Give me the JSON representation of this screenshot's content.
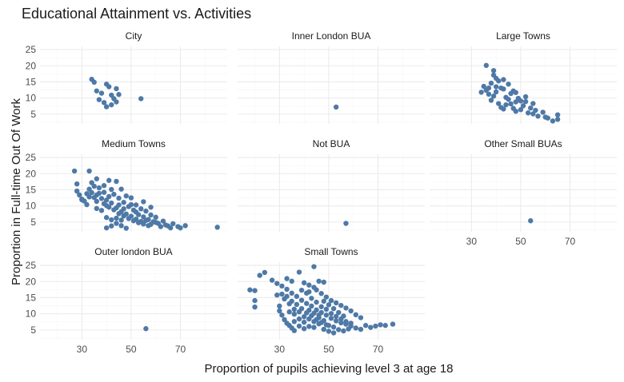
{
  "chart_data": {
    "type": "scatter",
    "title": "Educational Attainment vs. Activities",
    "xlabel": "Proportion of pupils achieving level 3 at age 18",
    "ylabel": "Proportion in Full-time Out Of Work",
    "xlim": [
      13,
      89
    ],
    "ylim": [
      2,
      26
    ],
    "xticks": [
      30,
      50,
      70
    ],
    "yticks": [
      5,
      10,
      15,
      20,
      25
    ],
    "point_color": "#4e79a7",
    "grid": true,
    "legend": "none",
    "facets": [
      {
        "name": "City",
        "points": [
          [
            34,
            15.8
          ],
          [
            35,
            14.9
          ],
          [
            36,
            12.2
          ],
          [
            38,
            11.5
          ],
          [
            37,
            9.5
          ],
          [
            39,
            8.6
          ],
          [
            40,
            14.3
          ],
          [
            41,
            13.5
          ],
          [
            42,
            10.9
          ],
          [
            43,
            9.8
          ],
          [
            40,
            7.3
          ],
          [
            42,
            7.9
          ],
          [
            44,
            8.8
          ],
          [
            44,
            12.9
          ],
          [
            45,
            11.1
          ],
          [
            54,
            9.8
          ]
        ]
      },
      {
        "name": "Inner London BUA",
        "points": [
          [
            53,
            7.2
          ]
        ]
      },
      {
        "name": "Large Towns",
        "points": [
          [
            36,
            20.1
          ],
          [
            39,
            18.5
          ],
          [
            40,
            16.1
          ],
          [
            41,
            15.3
          ],
          [
            38,
            14.6
          ],
          [
            35,
            13.6
          ],
          [
            36,
            12.4
          ],
          [
            37,
            11.2
          ],
          [
            39,
            10.6
          ],
          [
            40,
            11.9
          ],
          [
            42,
            13.1
          ],
          [
            43,
            12.8
          ],
          [
            44,
            10.2
          ],
          [
            45,
            9.6
          ],
          [
            46,
            11.4
          ],
          [
            47,
            12.2
          ],
          [
            48,
            8.8
          ],
          [
            49,
            9.9
          ],
          [
            41,
            8.3
          ],
          [
            42,
            7.1
          ],
          [
            43,
            6.6
          ],
          [
            44,
            7.9
          ],
          [
            46,
            8.2
          ],
          [
            47,
            6.8
          ],
          [
            48,
            5.9
          ],
          [
            50,
            6.4
          ],
          [
            51,
            7.6
          ],
          [
            52,
            8.9
          ],
          [
            53,
            5.4
          ],
          [
            54,
            6.9
          ],
          [
            55,
            5.1
          ],
          [
            56,
            6.2
          ],
          [
            57,
            4.4
          ],
          [
            59,
            5.6
          ],
          [
            60,
            4.1
          ],
          [
            61,
            3.8
          ],
          [
            63,
            2.9
          ],
          [
            65,
            3.4
          ],
          [
            65,
            4.8
          ],
          [
            34,
            11.8
          ],
          [
            38,
            9.3
          ],
          [
            40,
            13.5
          ],
          [
            45,
            14.3
          ],
          [
            48,
            11.7
          ],
          [
            50,
            9.1
          ],
          [
            52,
            10.4
          ],
          [
            55,
            8.3
          ],
          [
            39,
            17.1
          ],
          [
            43,
            15.7
          ],
          [
            37,
            13.1
          ]
        ]
      },
      {
        "name": "Medium Towns",
        "points": [
          [
            27,
            20.8
          ],
          [
            33,
            20.8
          ],
          [
            28,
            16.8
          ],
          [
            28,
            14.6
          ],
          [
            29,
            13.4
          ],
          [
            30,
            12.1
          ],
          [
            31,
            11.5
          ],
          [
            32,
            13.8
          ],
          [
            33,
            15.2
          ],
          [
            34,
            14.1
          ],
          [
            35,
            12.6
          ],
          [
            36,
            11.4
          ],
          [
            37,
            13.9
          ],
          [
            38,
            12.3
          ],
          [
            39,
            10.7
          ],
          [
            40,
            11.8
          ],
          [
            41,
            9.6
          ],
          [
            42,
            10.9
          ],
          [
            43,
            8.8
          ],
          [
            44,
            9.4
          ],
          [
            45,
            7.6
          ],
          [
            46,
            8.2
          ],
          [
            47,
            6.9
          ],
          [
            48,
            7.5
          ],
          [
            49,
            6.1
          ],
          [
            50,
            6.8
          ],
          [
            51,
            5.4
          ],
          [
            52,
            5.9
          ],
          [
            53,
            4.8
          ],
          [
            54,
            5.2
          ],
          [
            55,
            4.4
          ],
          [
            56,
            5.5
          ],
          [
            57,
            3.9
          ],
          [
            58,
            4.3
          ],
          [
            60,
            4.9
          ],
          [
            62,
            3.6
          ],
          [
            64,
            4.1
          ],
          [
            66,
            3.2
          ],
          [
            72,
            3.9
          ],
          [
            85,
            3.4
          ],
          [
            34,
            17.2
          ],
          [
            36,
            18.4
          ],
          [
            39,
            16.3
          ],
          [
            41,
            17.9
          ],
          [
            44,
            17.6
          ],
          [
            46,
            15.2
          ],
          [
            48,
            13.1
          ],
          [
            50,
            12.5
          ],
          [
            52,
            10.3
          ],
          [
            54,
            9.1
          ],
          [
            56,
            8.4
          ],
          [
            58,
            7.2
          ],
          [
            60,
            6.5
          ],
          [
            38,
            8.6
          ],
          [
            40,
            6.4
          ],
          [
            42,
            5.7
          ],
          [
            44,
            4.6
          ],
          [
            46,
            3.9
          ],
          [
            48,
            3.1
          ],
          [
            40,
            3.2
          ],
          [
            42,
            3.8
          ],
          [
            36,
            9.2
          ],
          [
            32,
            10.4
          ],
          [
            30,
            11.9
          ],
          [
            35,
            16.1
          ],
          [
            37,
            15.6
          ],
          [
            43,
            13.6
          ],
          [
            45,
            12.4
          ],
          [
            47,
            11.1
          ],
          [
            49,
            9.8
          ],
          [
            51,
            8.7
          ],
          [
            53,
            7.3
          ],
          [
            55,
            6.6
          ],
          [
            57,
            5.8
          ],
          [
            59,
            5.1
          ],
          [
            61,
            4.6
          ],
          [
            63,
            5.3
          ],
          [
            65,
            3.8
          ],
          [
            67,
            4.5
          ],
          [
            69,
            3.6
          ],
          [
            70,
            3.2
          ],
          [
            45,
            10.3
          ],
          [
            47,
            9.1
          ],
          [
            41,
            12.9
          ],
          [
            39,
            14.2
          ],
          [
            33,
            12.8
          ],
          [
            42,
            15.1
          ],
          [
            50,
            10.4
          ],
          [
            52,
            8.1
          ],
          [
            55,
            11.3
          ],
          [
            58,
            9.6
          ],
          [
            44,
            6.2
          ],
          [
            46,
            5.6
          ],
          [
            40,
            10.1
          ],
          [
            36,
            13.4
          ]
        ]
      },
      {
        "name": "Not BUA",
        "points": [
          [
            57,
            4.6
          ]
        ]
      },
      {
        "name": "Other Small BUAs",
        "points": [
          [
            54,
            5.4
          ]
        ]
      },
      {
        "name": "Outer london BUA",
        "points": [
          [
            56,
            5.4
          ]
        ]
      },
      {
        "name": "Small Towns",
        "points": [
          [
            18,
            17.4
          ],
          [
            20,
            17.2
          ],
          [
            20,
            14.1
          ],
          [
            20,
            12.1
          ],
          [
            22,
            21.9
          ],
          [
            24,
            22.8
          ],
          [
            27,
            20.4
          ],
          [
            29,
            19.4
          ],
          [
            31,
            18.6
          ],
          [
            33,
            17.6
          ],
          [
            35,
            16.4
          ],
          [
            37,
            15.4
          ],
          [
            39,
            14.2
          ],
          [
            41,
            13.2
          ],
          [
            43,
            12.4
          ],
          [
            45,
            11.2
          ],
          [
            47,
            10.4
          ],
          [
            49,
            9.6
          ],
          [
            51,
            8.6
          ],
          [
            53,
            7.8
          ],
          [
            55,
            7.2
          ],
          [
            57,
            6.8
          ],
          [
            59,
            6.2
          ],
          [
            61,
            5.6
          ],
          [
            63,
            5.2
          ],
          [
            65,
            6.4
          ],
          [
            67,
            5.8
          ],
          [
            69,
            6.2
          ],
          [
            71,
            6.6
          ],
          [
            73,
            6.4
          ],
          [
            76,
            6.8
          ],
          [
            44,
            24.6
          ],
          [
            38,
            22.9
          ],
          [
            33,
            20.9
          ],
          [
            35,
            20.1
          ],
          [
            40,
            19.6
          ],
          [
            42,
            18.9
          ],
          [
            45,
            17.4
          ],
          [
            47,
            16.3
          ],
          [
            49,
            15.2
          ],
          [
            51,
            14.1
          ],
          [
            53,
            13.4
          ],
          [
            55,
            12.6
          ],
          [
            57,
            11.8
          ],
          [
            59,
            10.9
          ],
          [
            61,
            9.7
          ],
          [
            63,
            8.8
          ],
          [
            30,
            12.4
          ],
          [
            30,
            10.9
          ],
          [
            31,
            9.6
          ],
          [
            32,
            8.2
          ],
          [
            33,
            7.1
          ],
          [
            34,
            6.4
          ],
          [
            35,
            5.6
          ],
          [
            36,
            4.8
          ],
          [
            38,
            6.2
          ],
          [
            40,
            5.4
          ],
          [
            42,
            6.1
          ],
          [
            44,
            5.8
          ],
          [
            46,
            6.9
          ],
          [
            48,
            5.2
          ],
          [
            50,
            4.6
          ],
          [
            52,
            4.1
          ],
          [
            32,
            14.6
          ],
          [
            34,
            13.1
          ],
          [
            36,
            11.4
          ],
          [
            38,
            10.6
          ],
          [
            40,
            9.1
          ],
          [
            42,
            8.4
          ],
          [
            44,
            7.6
          ],
          [
            46,
            8.8
          ],
          [
            48,
            7.9
          ],
          [
            50,
            6.4
          ],
          [
            52,
            5.9
          ],
          [
            54,
            5.1
          ],
          [
            56,
            4.7
          ],
          [
            58,
            5.3
          ],
          [
            37,
            12.9
          ],
          [
            39,
            11.6
          ],
          [
            41,
            10.3
          ],
          [
            43,
            9.4
          ],
          [
            45,
            8.2
          ],
          [
            47,
            7.3
          ],
          [
            49,
            6.6
          ],
          [
            35,
            13.9
          ],
          [
            33,
            15.4
          ],
          [
            31,
            16.1
          ],
          [
            29,
            15.8
          ],
          [
            39,
            17.3
          ],
          [
            41,
            16.4
          ],
          [
            43,
            14.8
          ],
          [
            45,
            13.6
          ],
          [
            47,
            12.2
          ],
          [
            49,
            11.4
          ],
          [
            51,
            10.1
          ],
          [
            53,
            9.2
          ],
          [
            55,
            8.4
          ],
          [
            57,
            7.6
          ],
          [
            59,
            7.1
          ],
          [
            48,
            13.9
          ],
          [
            50,
            12.8
          ],
          [
            52,
            11.6
          ],
          [
            54,
            10.4
          ],
          [
            56,
            9.3
          ],
          [
            42,
            11.1
          ],
          [
            44,
            10.2
          ],
          [
            46,
            9.6
          ],
          [
            36,
            9.9
          ],
          [
            38,
            8.4
          ],
          [
            40,
            7.4
          ],
          [
            34,
            10.6
          ],
          [
            36,
            7.6
          ],
          [
            48,
            19.8
          ],
          [
            46,
            20.1
          ],
          [
            44,
            18.2
          ],
          [
            42,
            16.8
          ]
        ]
      }
    ]
  }
}
